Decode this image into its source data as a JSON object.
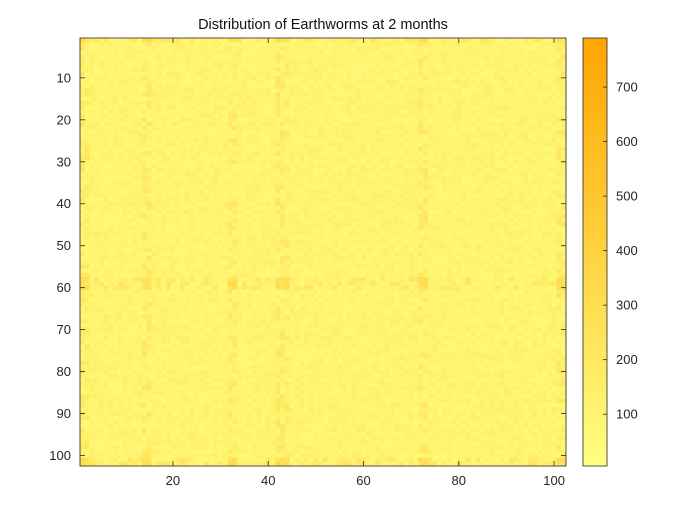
{
  "chart_data": {
    "type": "heatmap",
    "title": "Distribution of Earthworms at 2 months",
    "xlabel": "",
    "ylabel": "",
    "grid": false,
    "x_range": [
      1,
      102
    ],
    "y_range": [
      1,
      102
    ],
    "y_direction": "reversed",
    "x_ticks": [
      20,
      40,
      60,
      80,
      100
    ],
    "y_ticks": [
      10,
      20,
      30,
      40,
      50,
      60,
      70,
      80,
      90,
      100
    ],
    "colorbar": {
      "placement": "right",
      "range": [
        5,
        790
      ],
      "ticks": [
        100,
        200,
        300,
        400,
        500,
        600,
        700
      ],
      "color_low": "#ffff80",
      "color_high": "#ffa500"
    },
    "value_summary": {
      "typical_value": 100,
      "background_range": [
        60,
        170
      ],
      "hotspot_value_range": [
        230,
        320
      ],
      "hotspot_rows": [
        1,
        58,
        59,
        60,
        101,
        102
      ],
      "hotspot_columns": [
        1,
        2,
        14,
        15,
        32,
        33,
        42,
        43,
        44,
        72,
        73,
        101,
        102
      ]
    }
  }
}
